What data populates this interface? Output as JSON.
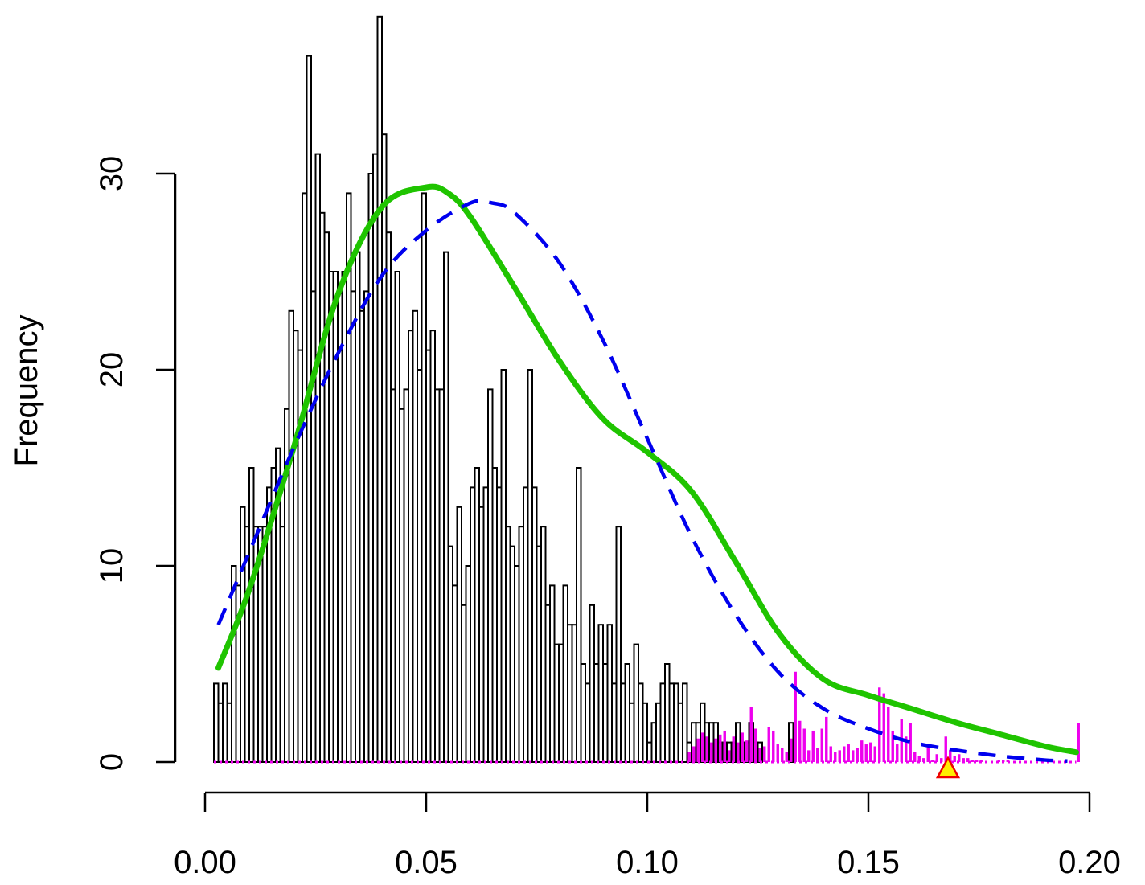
{
  "chart_data": {
    "type": "bar",
    "title": "",
    "xlabel": "",
    "ylabel": "Frequency",
    "xlim": [
      0.0,
      0.2
    ],
    "ylim": [
      0,
      38
    ],
    "bin_width": 0.001,
    "bins_start": 0.002,
    "x_ticks": [
      "0.00",
      "0.05",
      "0.10",
      "0.15",
      "0.20"
    ],
    "y_ticks": [
      "0",
      "10",
      "20",
      "30"
    ],
    "colors": {
      "histogram_fill": "#ffffff",
      "histogram_stroke": "#000000",
      "highlight_bars": "#ee00ee",
      "solid_curve": "#1fc400",
      "dashed_curve": "#0000ee",
      "marker_fill": "#ffee00",
      "marker_stroke": "#ee0000"
    },
    "series": [
      {
        "kind": "histogram",
        "values": [
          4,
          3,
          4,
          3,
          10,
          9,
          13,
          12,
          15,
          12,
          12,
          12,
          14,
          15,
          16,
          12,
          18,
          23,
          22,
          21,
          29,
          36,
          24,
          31,
          28,
          27,
          25,
          25,
          24,
          25,
          29,
          24,
          26,
          23,
          24,
          30,
          31,
          38,
          32,
          27,
          19,
          25,
          18,
          19,
          22,
          23,
          20,
          29,
          21,
          22,
          19,
          19,
          26,
          11,
          9,
          13,
          8,
          10,
          14,
          15,
          13,
          14,
          19,
          15,
          14,
          20,
          12,
          11,
          10,
          12,
          14,
          20,
          14,
          11,
          12,
          8,
          9,
          6,
          6,
          9,
          7,
          7,
          15,
          5,
          4,
          8,
          5,
          7,
          5,
          7,
          4,
          12,
          4,
          5,
          3,
          6,
          4,
          3,
          1,
          2,
          3,
          4,
          5,
          4,
          4,
          3,
          4,
          1,
          2,
          2,
          3,
          2,
          2,
          2,
          1,
          1,
          1,
          1,
          2,
          1,
          1,
          2,
          1,
          1,
          0,
          0,
          0,
          0,
          0,
          0,
          2
        ]
      },
      {
        "kind": "highlight_histogram",
        "bins_start": 0.109,
        "values": [
          0.5,
          0.8,
          1.2,
          1.5,
          1.3,
          1.0,
          1.2,
          1.4,
          1.6,
          0.6,
          1.3,
          1.0,
          1.5,
          1.1,
          2.8,
          1.7,
          0.7,
          0.8,
          1.8,
          1.6,
          0.9,
          0.7,
          0.5,
          1.2,
          4.6,
          2.1,
          1.7,
          0.6,
          1.6,
          0.7,
          1.7,
          2.3,
          0.8,
          0.5,
          0.6,
          0.8,
          0.9,
          0.6,
          0.7,
          1.1,
          0.9,
          1.0,
          0.8,
          3.8,
          3.5,
          2.8,
          1.6,
          0.9,
          2.2,
          1.3,
          2.0,
          0.5,
          0.3,
          0.2,
          0.9,
          0.1,
          0.4,
          0.2,
          1.3,
          0.6,
          0.3,
          0.4,
          0.2,
          0.2,
          0.1,
          0.1,
          0.1,
          0.0,
          0.0,
          0.0,
          0.1,
          0.1,
          0.1,
          0.0,
          0.0,
          0.0,
          0.0,
          0.0,
          0.0,
          0.0,
          0.0,
          0.0,
          0.0,
          0.0,
          0.0,
          0.0,
          0.0,
          0.0,
          2.0
        ]
      },
      {
        "kind": "density_curve_solid",
        "x": [
          0.003,
          0.01,
          0.02,
          0.03,
          0.04,
          0.05,
          0.055,
          0.06,
          0.07,
          0.08,
          0.09,
          0.1,
          0.11,
          0.12,
          0.13,
          0.14,
          0.15,
          0.16,
          0.17,
          0.18,
          0.19,
          0.197
        ],
        "y": [
          4.8,
          8.8,
          16.0,
          23.8,
          28.3,
          29.3,
          29.0,
          27.8,
          24.2,
          20.5,
          17.5,
          15.8,
          13.8,
          10.2,
          6.5,
          4.2,
          3.4,
          2.7,
          2.0,
          1.4,
          0.8,
          0.5
        ]
      },
      {
        "kind": "density_curve_dashed",
        "x": [
          0.003,
          0.01,
          0.02,
          0.03,
          0.04,
          0.05,
          0.06,
          0.065,
          0.07,
          0.08,
          0.09,
          0.1,
          0.11,
          0.12,
          0.13,
          0.14,
          0.15,
          0.16,
          0.17,
          0.18,
          0.19,
          0.195
        ],
        "y": [
          7.0,
          10.7,
          16.0,
          20.8,
          24.8,
          27.1,
          28.5,
          28.5,
          28.0,
          25.5,
          21.5,
          16.5,
          11.5,
          7.5,
          4.5,
          2.7,
          1.7,
          1.0,
          0.6,
          0.3,
          0.1,
          0.05
        ]
      }
    ],
    "marker": {
      "shape": "triangle",
      "x": 0.168
    }
  }
}
